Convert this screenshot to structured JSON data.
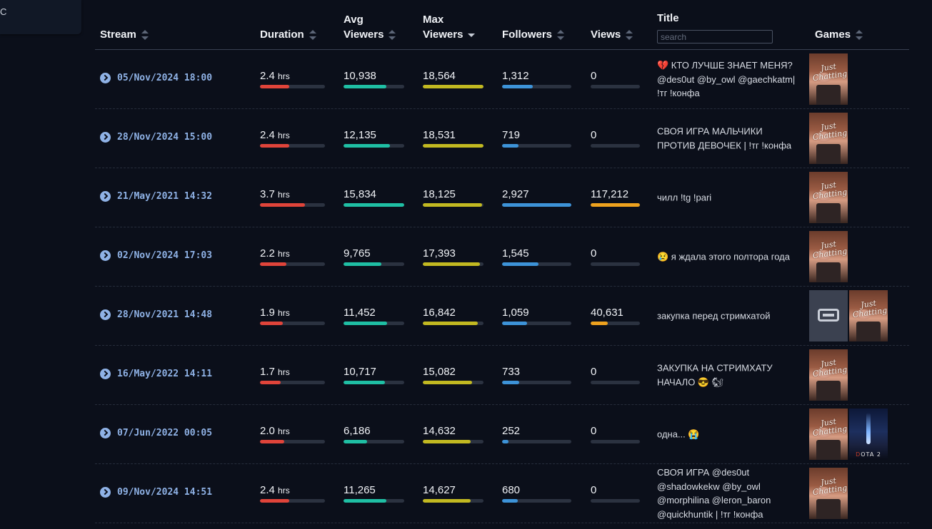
{
  "sidebar": {
    "stub_text": "C"
  },
  "search": {
    "placeholder": "search"
  },
  "columns": {
    "stream": "Stream",
    "duration": "Duration",
    "avg_1": "Avg",
    "avg_2": "Viewers",
    "max_1": "Max",
    "max_2": "Viewers",
    "followers": "Followers",
    "views": "Views",
    "title": "Title",
    "games": "Games"
  },
  "sort": {
    "column": "max_viewers",
    "direction": "desc"
  },
  "colors": {
    "duration": "#e0443a",
    "avg": "#1fbfa4",
    "max": "#c2b921",
    "followers": "#3d93d8",
    "views": "#eea21e"
  },
  "games_legend": {
    "jc": {
      "name": "Just Chatting",
      "text": "Just Chatting",
      "icon": "just-chatting-thumbnail"
    },
    "unk": {
      "name": "Unknown game",
      "icon": "gamepad-icon"
    },
    "dota": {
      "name": "Dota 2",
      "text_1": "D",
      "text_2": "OTA 2",
      "icon": "dota-2-thumbnail"
    }
  },
  "rows": [
    {
      "stream": "05/Nov/2024 18:00",
      "duration": "2.4",
      "unit": "hrs",
      "avg": "10,938",
      "max": "18,564",
      "followers": "1,312",
      "views": "0",
      "title": "💔 КТО ЛУЧШЕ ЗНАЕТ МЕНЯ? @des0ut @by_owl @gaechkatm| !тг !конфа",
      "pct": {
        "dur": 0.45,
        "avg": 0.7,
        "max": 1.0,
        "fol": 0.44,
        "vie": 0.0
      },
      "games": [
        "jc"
      ]
    },
    {
      "stream": "28/Nov/2024 15:00",
      "duration": "2.4",
      "unit": "hrs",
      "avg": "12,135",
      "max": "18,531",
      "followers": "719",
      "views": "0",
      "title": "СВОЯ ИГРА МАЛЬЧИКИ ПРОТИВ ДЕВОЧЕК | !тг !конфа",
      "pct": {
        "dur": 0.45,
        "avg": 0.77,
        "max": 0.998,
        "fol": 0.24,
        "vie": 0.0
      },
      "games": [
        "jc"
      ]
    },
    {
      "stream": "21/May/2021 14:32",
      "duration": "3.7",
      "unit": "hrs",
      "avg": "15,834",
      "max": "18,125",
      "followers": "2,927",
      "views": "117,212",
      "title": "чилл !tg !pari",
      "pct": {
        "dur": 0.69,
        "avg": 1.0,
        "max": 0.976,
        "fol": 1.0,
        "vie": 1.0
      },
      "games": [
        "jc"
      ]
    },
    {
      "stream": "02/Nov/2024 17:03",
      "duration": "2.2",
      "unit": "hrs",
      "avg": "9,765",
      "max": "17,393",
      "followers": "1,545",
      "views": "0",
      "title": "😢 я ждала этого полтора года",
      "pct": {
        "dur": 0.41,
        "avg": 0.62,
        "max": 0.937,
        "fol": 0.53,
        "vie": 0.0
      },
      "games": [
        "jc"
      ]
    },
    {
      "stream": "28/Nov/2021 14:48",
      "duration": "1.9",
      "unit": "hrs",
      "avg": "11,452",
      "max": "16,842",
      "followers": "1,059",
      "views": "40,631",
      "title": "закупка перед стримхатой",
      "pct": {
        "dur": 0.35,
        "avg": 0.72,
        "max": 0.907,
        "fol": 0.36,
        "vie": 0.35
      },
      "games": [
        "unk",
        "jc"
      ]
    },
    {
      "stream": "16/May/2022 14:11",
      "duration": "1.7",
      "unit": "hrs",
      "avg": "10,717",
      "max": "15,082",
      "followers": "733",
      "views": "0",
      "title": "ЗАКУПКА НА СТРИМХАТУ НАЧАЛО 😎 🐿",
      "pct": {
        "dur": 0.32,
        "avg": 0.68,
        "max": 0.812,
        "fol": 0.25,
        "vie": 0.0
      },
      "games": [
        "jc"
      ]
    },
    {
      "stream": "07/Jun/2022 00:05",
      "duration": "2.0",
      "unit": "hrs",
      "avg": "6,186",
      "max": "14,632",
      "followers": "252",
      "views": "0",
      "title": "одна... 😭",
      "pct": {
        "dur": 0.37,
        "avg": 0.39,
        "max": 0.788,
        "fol": 0.09,
        "vie": 0.0
      },
      "games": [
        "jc",
        "dota"
      ]
    },
    {
      "stream": "09/Nov/2024 14:51",
      "duration": "2.4",
      "unit": "hrs",
      "avg": "11,265",
      "max": "14,627",
      "followers": "680",
      "views": "0",
      "title": "СВОЯ ИГРА @des0ut @shadowkekw @by_owl @morphilina @leron_baron @quickhuntik | !тг !конфа",
      "pct": {
        "dur": 0.45,
        "avg": 0.71,
        "max": 0.788,
        "fol": 0.23,
        "vie": 0.0
      },
      "games": [
        "jc"
      ]
    }
  ]
}
